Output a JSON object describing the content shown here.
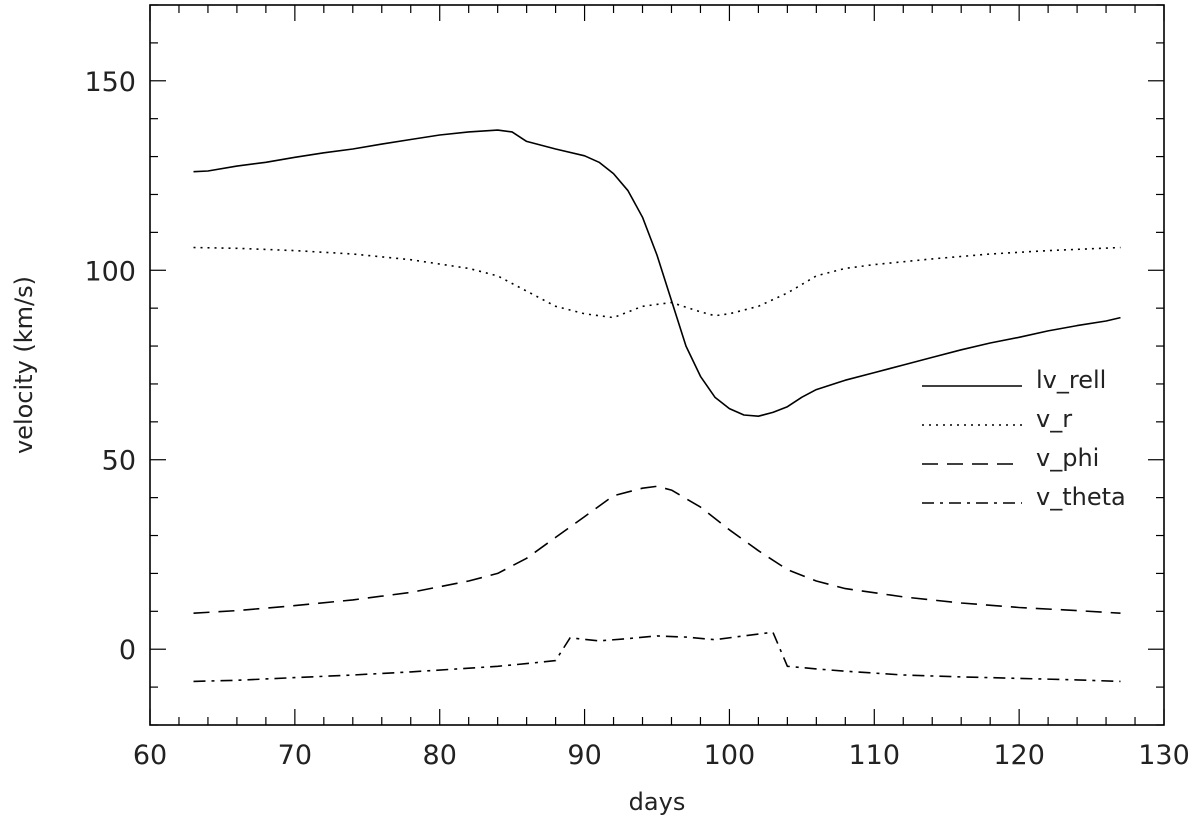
{
  "chart_data": {
    "type": "line",
    "title": "",
    "xlabel": "days",
    "ylabel": "velocity (km/s)",
    "xlim": [
      60,
      130
    ],
    "ylim": [
      -20,
      170
    ],
    "xticks": [
      60,
      70,
      80,
      90,
      100,
      110,
      120,
      130
    ],
    "yticks": [
      0,
      50,
      100,
      150
    ],
    "xtick_labels": [
      "60",
      "70",
      "80",
      "90",
      "100",
      "110",
      "120",
      "130"
    ],
    "ytick_labels": [
      "0",
      "50",
      "100",
      "150"
    ],
    "grid": false,
    "legend_position": "right",
    "series": [
      {
        "name": "lv_rell",
        "style": "solid",
        "x": [
          63,
          64,
          66,
          68,
          70,
          72,
          74,
          76,
          78,
          80,
          82,
          84,
          85,
          86,
          88,
          90,
          91,
          92,
          93,
          94,
          95,
          96,
          97,
          98,
          99,
          100,
          101,
          102,
          103,
          104,
          105,
          106,
          108,
          110,
          112,
          114,
          116,
          118,
          120,
          122,
          124,
          126,
          127
        ],
        "y": [
          126,
          126.2,
          127.5,
          128.5,
          129.8,
          131,
          132,
          133.3,
          134.5,
          135.7,
          136.5,
          137,
          136.5,
          134,
          132,
          130.2,
          128.5,
          125.5,
          121,
          114,
          104,
          92,
          80,
          72,
          66.5,
          63.5,
          61.8,
          61.5,
          62.5,
          64,
          66.5,
          68.5,
          71,
          73,
          75,
          77,
          79,
          80.8,
          82.3,
          84,
          85.4,
          86.6,
          87.5
        ]
      },
      {
        "name": "v_r",
        "style": "dotted",
        "x": [
          63,
          66,
          70,
          74,
          78,
          82,
          84,
          86,
          88,
          90,
          92,
          94,
          96,
          98,
          99,
          100,
          102,
          104,
          106,
          108,
          110,
          114,
          118,
          122,
          127
        ],
        "y": [
          106,
          105.8,
          105.2,
          104.3,
          102.8,
          100.5,
          98.5,
          94.5,
          90.5,
          88.5,
          87.5,
          90.5,
          91.5,
          89,
          88,
          88.5,
          90.5,
          94,
          98.5,
          100.5,
          101.5,
          103,
          104.3,
          105.2,
          106
        ]
      },
      {
        "name": "v_phi",
        "style": "dashed",
        "x": [
          63,
          66,
          70,
          74,
          78,
          82,
          84,
          86,
          88,
          90,
          92,
          94,
          95,
          96,
          98,
          100,
          102,
          104,
          106,
          108,
          112,
          116,
          120,
          124,
          127
        ],
        "y": [
          9.5,
          10.2,
          11.5,
          13,
          15,
          18,
          20,
          24,
          29.5,
          35,
          40.5,
          42.5,
          43,
          42,
          37.5,
          31.5,
          26,
          21,
          18,
          16,
          13.8,
          12.2,
          11,
          10.2,
          9.5
        ]
      },
      {
        "name": "v_theta",
        "style": "dashdot",
        "x": [
          63,
          66,
          70,
          74,
          78,
          82,
          84,
          86,
          88,
          89,
          91,
          93,
          95,
          97,
          99,
          101,
          103,
          104,
          106,
          108,
          112,
          116,
          120,
          124,
          127
        ],
        "y": [
          -8.5,
          -8.2,
          -7.5,
          -6.8,
          -6,
          -5,
          -4.5,
          -3.8,
          -3,
          3,
          2.2,
          2.8,
          3.5,
          3.2,
          2.5,
          3.5,
          4.5,
          -4.5,
          -5.2,
          -5.8,
          -6.8,
          -7.3,
          -7.7,
          -8.1,
          -8.5
        ]
      }
    ]
  }
}
